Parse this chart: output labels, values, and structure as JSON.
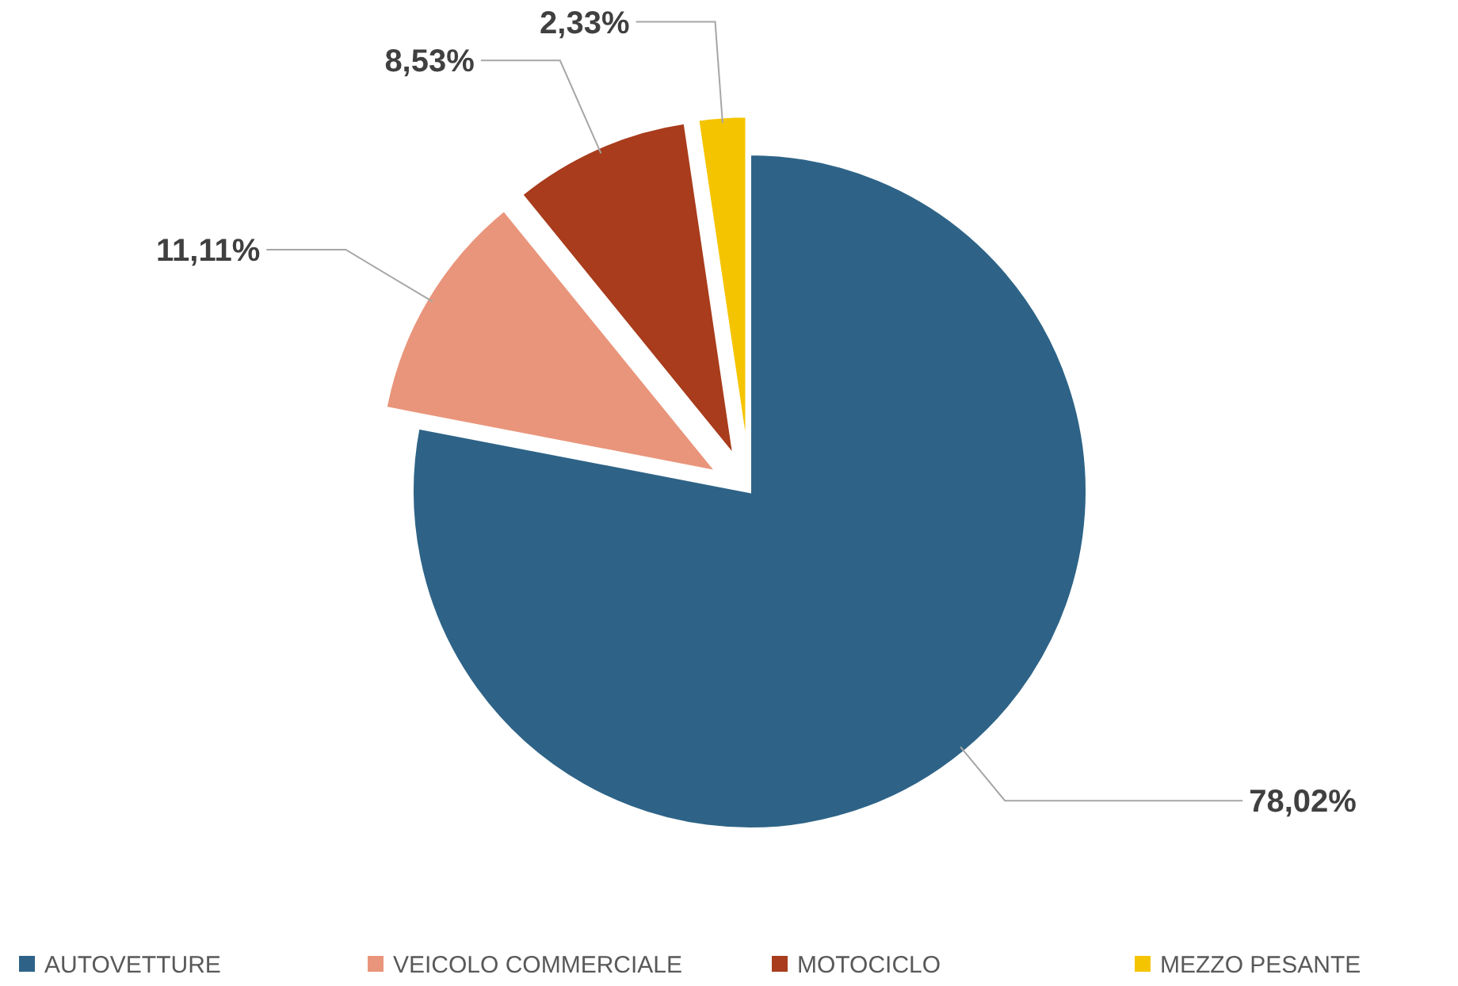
{
  "chart_data": {
    "type": "pie",
    "categories": [
      "AUTOVETTURE",
      "VEICOLO COMMERCIALE",
      "MOTOCICLO",
      "MEZZO PESANTE"
    ],
    "values": [
      78.02,
      11.11,
      8.53,
      2.33
    ],
    "value_labels": [
      "78,02%",
      "11,11%",
      "8,53%",
      "2,33%"
    ],
    "colors": [
      "#2e6387",
      "#e9957b",
      "#a83c1c",
      "#f5c400"
    ],
    "legend": "bottom"
  }
}
